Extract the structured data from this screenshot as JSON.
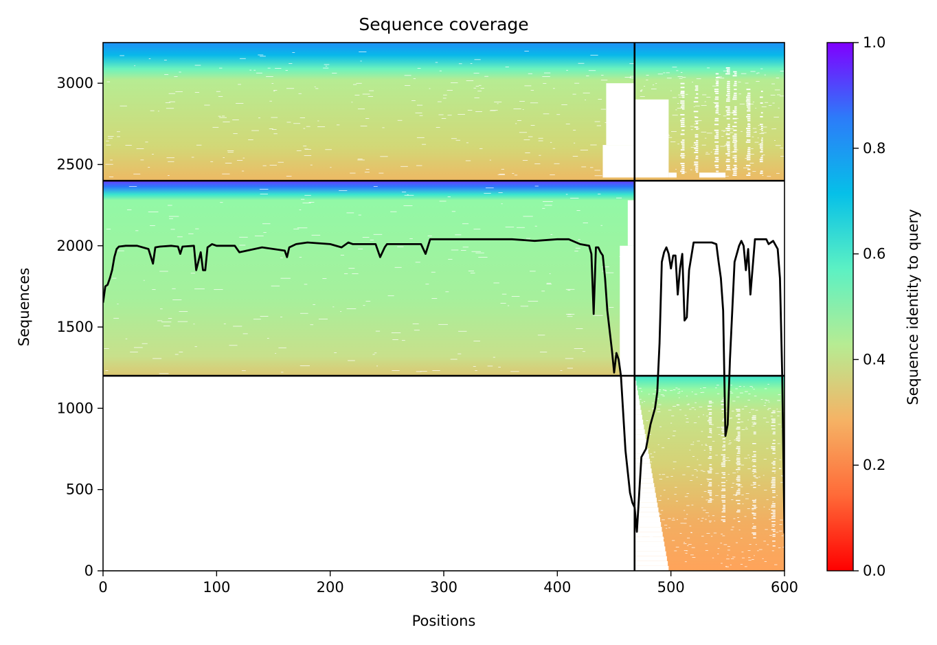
{
  "chart_data": {
    "type": "heatmap",
    "title": "Sequence coverage",
    "xlabel": "Positions",
    "ylabel": "Sequences",
    "xlim": [
      0,
      600
    ],
    "ylim": [
      0,
      3250
    ],
    "x_ticks": [
      0,
      100,
      200,
      300,
      400,
      500,
      600
    ],
    "y_ticks": [
      0,
      500,
      1000,
      1500,
      2000,
      2500,
      3000
    ],
    "colorbar": {
      "label": "Sequence identity to query",
      "range": [
        0.0,
        1.0
      ],
      "ticks": [
        0.0,
        0.2,
        0.4,
        0.6,
        0.8,
        1.0
      ],
      "colormap": "rainbow_r",
      "colors": [
        "#ff0000",
        "#ff8c48",
        "#d6d273",
        "#97f8a2",
        "#45e1cc",
        "#06b2eb",
        "#3b63fb",
        "#8000ff"
      ]
    },
    "blocks": [
      {
        "name": "block-top",
        "x_range": [
          0,
          600
        ],
        "y_range": [
          2400,
          3250
        ],
        "identity_top": 0.85,
        "identity_mid": 0.38,
        "identity_bottom": 0.3
      },
      {
        "name": "block-mid",
        "x_range": [
          0,
          468
        ],
        "y_range": [
          1200,
          2400
        ],
        "identity_top": 0.98,
        "identity_mid": 0.42,
        "identity_bottom": 0.33
      },
      {
        "name": "block-bottom",
        "x_range": [
          468,
          600
        ],
        "y_range": [
          0,
          1200
        ],
        "identity_top": 0.6,
        "identity_mid": 0.33,
        "identity_bottom": 0.22
      }
    ],
    "divider_lines": {
      "vertical_x": 468,
      "horizontal_y": [
        1200,
        2400
      ]
    },
    "coverage_line": {
      "color": "#000000",
      "x": [
        0,
        2,
        4,
        6,
        8,
        10,
        12,
        14,
        20,
        30,
        40,
        44,
        46,
        50,
        60,
        66,
        68,
        70,
        80,
        82,
        86,
        88,
        90,
        92,
        94,
        96,
        100,
        116,
        120,
        140,
        160,
        162,
        164,
        170,
        180,
        200,
        210,
        216,
        220,
        240,
        244,
        248,
        250,
        260,
        280,
        284,
        288,
        290,
        300,
        320,
        340,
        360,
        380,
        400,
        410,
        420,
        428,
        430,
        432,
        434,
        436,
        438,
        440,
        442,
        444,
        446,
        448,
        450,
        452,
        454,
        456,
        460,
        464,
        466,
        468,
        470,
        474,
        478,
        482,
        486,
        488,
        490,
        492,
        494,
        496,
        498,
        500,
        502,
        504,
        506,
        508,
        510,
        512,
        514,
        516,
        520,
        530,
        536,
        540,
        542,
        544,
        546,
        548,
        550,
        552,
        556,
        560,
        562,
        564,
        566,
        568,
        570,
        574,
        580,
        584,
        586,
        590,
        594,
        596,
        598,
        600
      ],
      "y": [
        1650,
        1750,
        1760,
        1800,
        1850,
        1930,
        1980,
        1995,
        2000,
        2000,
        1980,
        1890,
        1990,
        1995,
        2000,
        1995,
        1950,
        1995,
        2000,
        1850,
        1960,
        1850,
        1850,
        1990,
        2000,
        2010,
        2000,
        2000,
        1960,
        1990,
        1970,
        1930,
        1990,
        2010,
        2020,
        2010,
        1990,
        2020,
        2010,
        2010,
        1930,
        1990,
        2010,
        2010,
        2010,
        1950,
        2040,
        2040,
        2040,
        2040,
        2040,
        2040,
        2030,
        2040,
        2040,
        2010,
        2000,
        1950,
        1580,
        1990,
        1990,
        1960,
        1940,
        1800,
        1600,
        1480,
        1360,
        1220,
        1340,
        1300,
        1200,
        740,
        480,
        420,
        390,
        240,
        700,
        750,
        900,
        1000,
        1100,
        1400,
        1900,
        1960,
        1990,
        1950,
        1860,
        1940,
        1940,
        1700,
        1860,
        1950,
        1540,
        1560,
        1850,
        2020,
        2020,
        2020,
        2010,
        1900,
        1800,
        1600,
        830,
        900,
        1300,
        1900,
        2000,
        2030,
        2000,
        1850,
        1980,
        1700,
        2040,
        2040,
        2040,
        2010,
        2030,
        1980,
        1800,
        1200,
        230
      ]
    }
  }
}
